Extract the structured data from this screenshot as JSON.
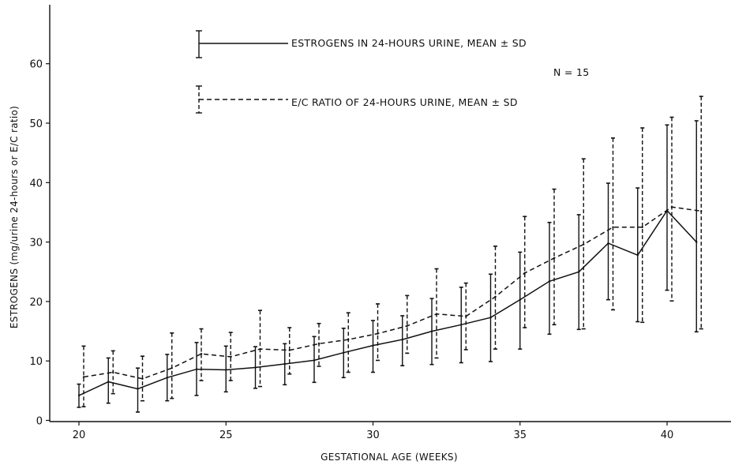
{
  "chart_data": {
    "type": "line",
    "xlabel": "GESTATIONAL AGE (WEEKS)",
    "ylabel": "ESTROGENS (mg/urine 24-hours or E/C ratio)",
    "xlim": [
      18.9,
      41.8
    ],
    "ylim": [
      0,
      70
    ],
    "xticks": [
      20,
      25,
      30,
      35,
      40
    ],
    "yticks": [
      0,
      10,
      20,
      30,
      40,
      50,
      60
    ],
    "grid": false,
    "legend_position": "top-center",
    "legend": {
      "series1": "ESTROGENS IN 24-HOURS URINE, MEAN ± SD",
      "n_label": "N = 15",
      "series2": "E/C RATIO OF 24-HOURS URINE, MEAN ± SD"
    },
    "x": [
      20,
      21,
      22,
      23,
      24,
      25,
      26,
      27,
      28,
      29,
      30,
      31,
      32,
      33,
      34,
      35,
      36,
      37,
      38,
      39,
      40,
      41
    ],
    "series": [
      {
        "name": "ESTROGENS IN 24-HOURS URINE, MEAN ± SD",
        "line_style": "solid",
        "values": [
          4.2,
          6.5,
          5.3,
          7.2,
          8.6,
          8.5,
          8.9,
          9.5,
          10.1,
          11.4,
          12.6,
          13.6,
          15.0,
          16.1,
          17.3,
          20.3,
          23.4,
          25.0,
          29.8,
          27.8,
          35.3,
          30.0
        ],
        "lower": [
          2.2,
          2.9,
          1.4,
          3.3,
          4.2,
          4.8,
          5.4,
          6.0,
          6.4,
          7.2,
          8.1,
          9.2,
          9.4,
          9.7,
          9.9,
          12.0,
          14.5,
          15.3,
          20.3,
          16.6,
          21.9,
          14.9
        ],
        "upper": [
          6.1,
          10.5,
          8.8,
          11.1,
          13.1,
          12.5,
          12.4,
          12.9,
          14.1,
          15.5,
          16.8,
          17.6,
          20.5,
          22.4,
          24.6,
          28.3,
          33.3,
          34.6,
          39.9,
          39.1,
          49.7,
          50.4
        ]
      },
      {
        "name": "E/C RATIO OF 24-HOURS URINE, MEAN ± SD",
        "line_style": "dashed",
        "values": [
          7.3,
          8.1,
          7.0,
          8.8,
          11.2,
          10.7,
          12.0,
          11.8,
          12.9,
          13.6,
          14.6,
          15.9,
          17.9,
          17.5,
          20.8,
          24.8,
          27.3,
          29.6,
          32.5,
          32.5,
          35.9,
          35.2
        ],
        "lower": [
          2.3,
          4.5,
          3.3,
          3.7,
          6.7,
          6.7,
          5.7,
          7.8,
          9.1,
          8.1,
          10.1,
          11.3,
          10.5,
          11.9,
          12.0,
          15.6,
          16.1,
          15.4,
          18.6,
          16.5,
          20.1,
          15.4
        ],
        "upper": [
          12.5,
          11.7,
          10.8,
          14.7,
          15.4,
          14.8,
          18.5,
          15.6,
          16.3,
          18.1,
          19.6,
          21.0,
          25.5,
          23.1,
          29.3,
          34.3,
          38.9,
          44.0,
          47.5,
          49.2,
          51.0,
          54.5
        ]
      }
    ]
  }
}
